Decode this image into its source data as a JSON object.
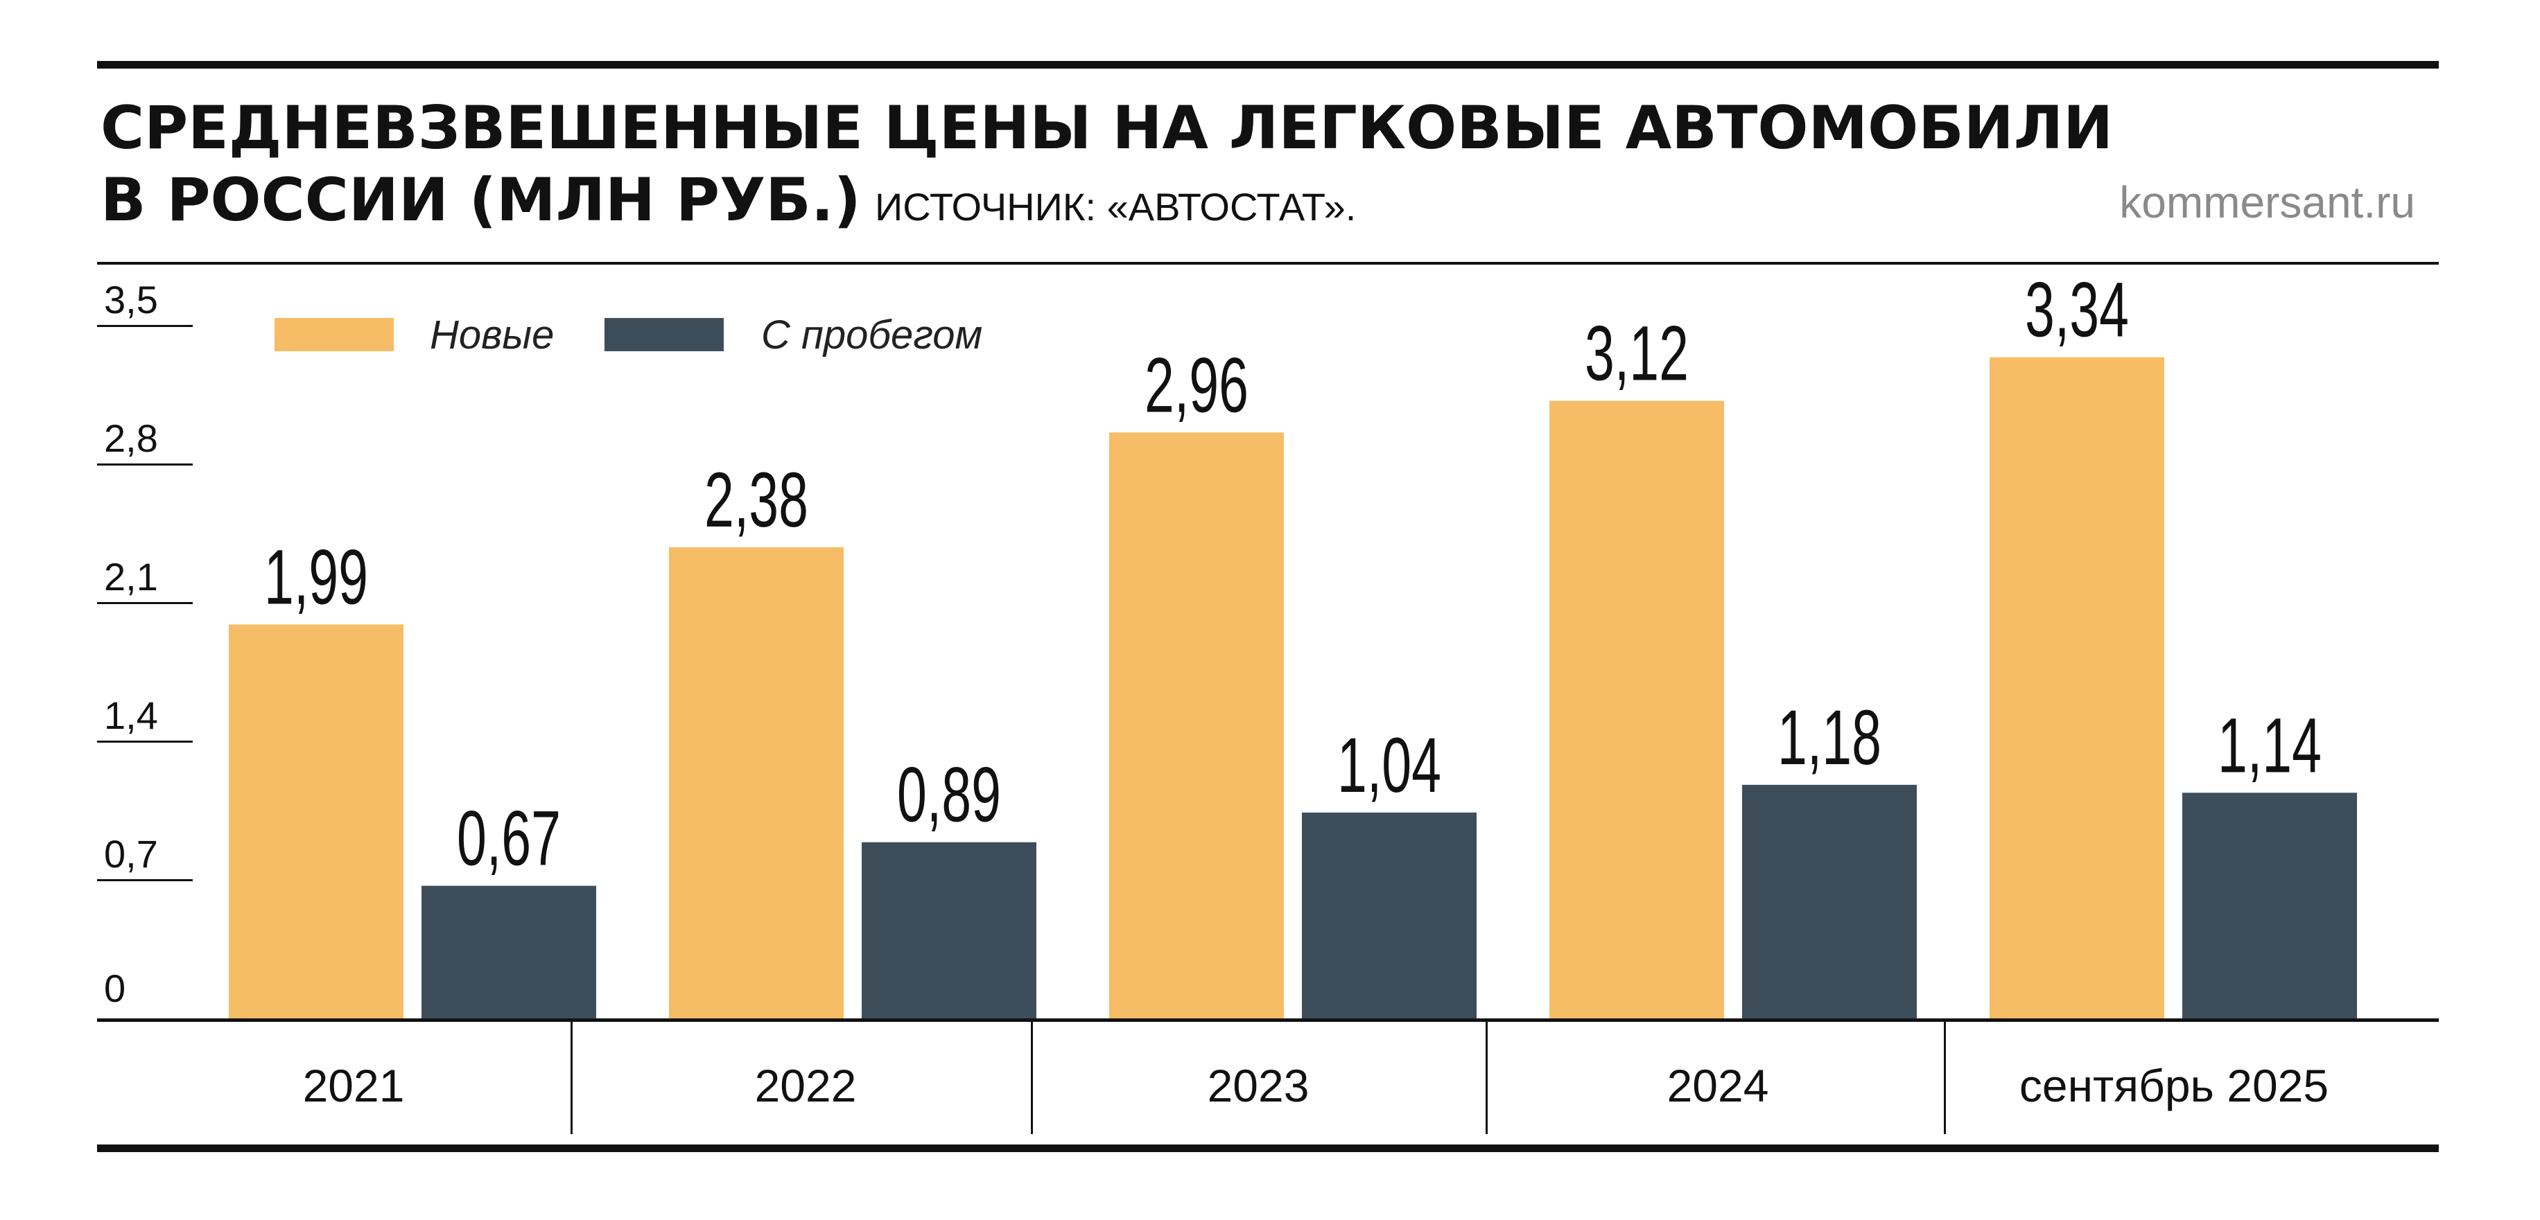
{
  "header": {
    "title_line1": "СРЕДНЕВЗВЕШЕННЫЕ ЦЕНЫ НА ЛЕГКОВЫЕ АВТОМОБИЛИ",
    "title_line2": "В РОССИИ (МЛН РУБ.)",
    "source": "ИСТОЧНИК: «АВТОСТАТ».",
    "site": "kommersant.ru"
  },
  "chart_data": {
    "type": "bar",
    "title": "СРЕДНЕВЗВЕШЕННЫЕ ЦЕНЫ НА ЛЕГКОВЫЕ АВТОМОБИЛИ В РОССИИ (МЛН РУБ.)",
    "categories": [
      "2021",
      "2022",
      "2023",
      "2024",
      "сентябрь 2025"
    ],
    "series": [
      {
        "name": "Новые",
        "color": "#F6BC66",
        "values": [
          1.99,
          2.38,
          2.96,
          3.12,
          3.34
        ],
        "labels": [
          "1,99",
          "2,38",
          "2,96",
          "3,12",
          "3,34"
        ]
      },
      {
        "name": "С пробегом",
        "color": "#3D4E5A",
        "values": [
          0.67,
          0.89,
          1.04,
          1.18,
          1.14
        ],
        "labels": [
          "0,67",
          "0,89",
          "1,04",
          "1,18",
          "1,14"
        ]
      }
    ],
    "y_ticks": [
      0,
      0.7,
      1.4,
      2.1,
      2.8,
      3.5
    ],
    "y_tick_labels": [
      "0",
      "0,7",
      "1,4",
      "2,1",
      "2,8",
      "3,5"
    ],
    "ylim": [
      0,
      3.5
    ],
    "legend_position": "top-left",
    "grid": false
  }
}
